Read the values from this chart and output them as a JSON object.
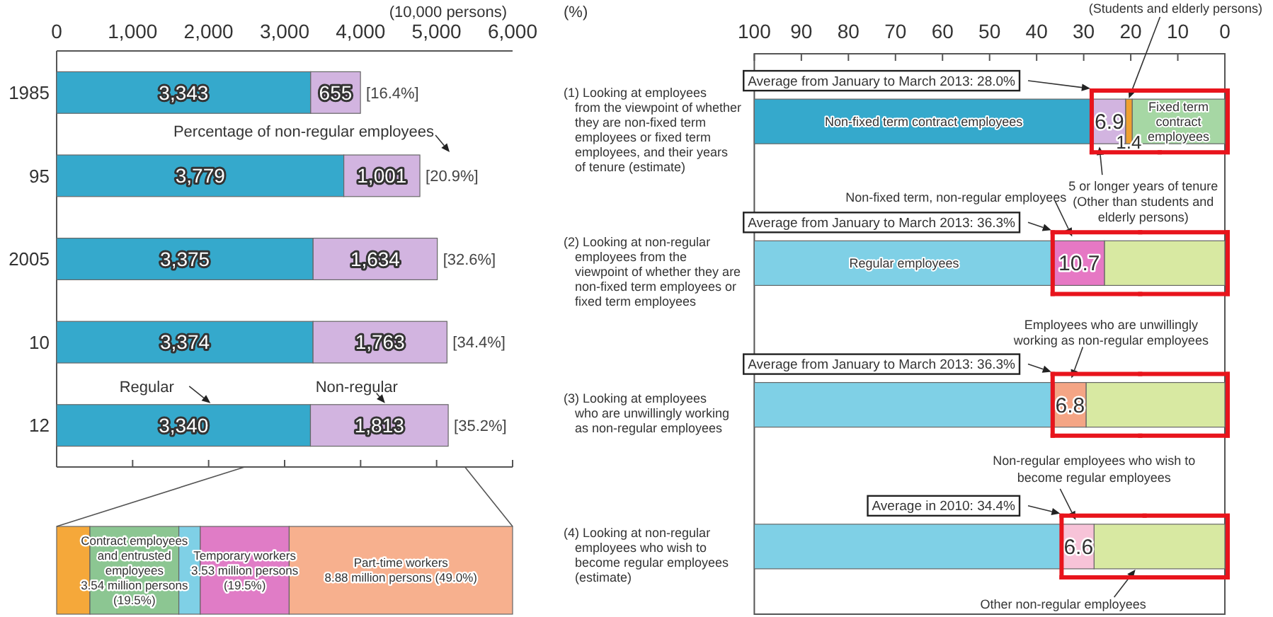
{
  "chart_data": [
    {
      "type": "bar",
      "orientation": "horizontal",
      "stacked": true,
      "xlabel": "(10,000 persons)",
      "categories": [
        "1985",
        "95",
        "2005",
        "10",
        "12"
      ],
      "series": [
        {
          "name": "Regular",
          "color": "#35a9cc",
          "values": [
            3343,
            3779,
            3375,
            3374,
            3340
          ],
          "value_labels": [
            "3,343",
            "3,779",
            "3,375",
            "3,374",
            "3,340"
          ]
        },
        {
          "name": "Non-regular",
          "color": "#d2b4e0",
          "values": [
            655,
            1001,
            1634,
            1763,
            1813
          ],
          "value_labels": [
            "655",
            "1,001",
            "1,634",
            "1,763",
            "1,813"
          ]
        }
      ],
      "xlim": [
        0,
        6000
      ],
      "xticks": [
        0,
        {
          "value": 1000,
          "label": "1,000"
        },
        {
          "value": 2000,
          "label": "2,000"
        },
        {
          "value": 3000,
          "label": "3,000"
        },
        {
          "value": 4000,
          "label": "4,000"
        },
        {
          "value": 5000,
          "label": "5,000"
        },
        {
          "value": 6000,
          "label": "6,000"
        }
      ],
      "annotations": [
        {
          "text": "[16.4%]",
          "x": 3998,
          "y": "1985"
        },
        {
          "text": "[20.9%]",
          "x": 4780,
          "y": "95"
        },
        {
          "text": "[32.6%]",
          "x": 5009,
          "y": "2005"
        },
        {
          "text": "[34.4%]",
          "x": 5137,
          "y": "10"
        },
        {
          "text": "[35.2%]",
          "x": 5153,
          "y": "12"
        },
        "Percentage of non-regular employees"
      ]
    },
    {
      "type": "bar",
      "orientation": "horizontal",
      "stacked": true,
      "categories": [
        null
      ],
      "tick_labels": false,
      "series": [
        {
          "color": "#f5a83a",
          "values": [
            7.3
          ]
        },
        {
          "name": "Contract employees and entrusted employees",
          "color": "#8cc692",
          "values": [
            19.5
          ],
          "value_labels": [
            "3.54 million persons (19.5%)"
          ]
        },
        {
          "color": "#7fd0e6",
          "values": [
            4.7
          ]
        },
        {
          "name": "Temporary workers",
          "color": "#e07cc6",
          "values": [
            19.5
          ],
          "value_labels": [
            "3.53 million persons (19.5%)"
          ]
        },
        {
          "name": "Part-time workers",
          "color": "#f7b08e",
          "values": [
            49.0
          ],
          "value_labels": [
            "8.88 million persons (49.0%)"
          ]
        }
      ]
    },
    {
      "type": "bar",
      "orientation": "horizontal",
      "stacked": true,
      "xlabel": "(%)",
      "categories": [
        "(1) Looking at employees from the viewpoint of whether they are non-fixed term employees or fixed term employees, and their years of tenure (estimate)",
        "(2) Looking at non-regular employees from the viewpoint of whether they are non-fixed term employees or fixed term employees",
        "(3) Looking at employees who are unwillingly working as non-regular employees",
        "(4) Looking at non-regular employees who wish to become regular employees (estimate)"
      ],
      "xlim": [
        100,
        0
      ],
      "xticks": [
        100,
        90,
        80,
        70,
        60,
        50,
        40,
        30,
        20,
        10,
        0
      ],
      "series": [
        {
          "name": "Fixed term contract employees",
          "color": "#a6d7a4",
          "values": [
            19.7,
            null,
            null,
            null
          ]
        },
        {
          "name": "Other non-regular employees",
          "color": "#d8e9a2",
          "values": [
            null,
            25.6,
            29.5,
            27.8
          ]
        },
        {
          "name": "(Students and elderly persons)",
          "color": "#f0a030",
          "values": [
            1.4,
            null,
            null,
            null
          ],
          "value_labels": [
            "1.4",
            null,
            null,
            null
          ]
        },
        {
          "name": "5 or longer years of tenure (Other than students and elderly persons)",
          "color": "#d2b4e0",
          "values": [
            6.9,
            null,
            null,
            null
          ],
          "value_labels": [
            "6.9",
            null,
            null,
            null
          ]
        },
        {
          "name": "Non-fixed term, non-regular employees",
          "color": "#e678c4",
          "values": [
            null,
            10.7,
            null,
            null
          ],
          "value_labels": [
            null,
            "10.7",
            null,
            null
          ]
        },
        {
          "name": "Employees who are unwillingly working as non-regular employees",
          "color": "#f4a585",
          "values": [
            null,
            null,
            6.8,
            null
          ],
          "value_labels": [
            null,
            null,
            "6.8",
            null
          ]
        },
        {
          "name": "Non-regular employees who wish to become regular employees",
          "color": "#f7c3d8",
          "values": [
            null,
            null,
            null,
            6.6
          ],
          "value_labels": [
            null,
            null,
            null,
            "6.6"
          ]
        },
        {
          "name": "Non-fixed term contract employees",
          "color": "#35a9cc",
          "values": [
            72.0,
            null,
            null,
            null
          ]
        },
        {
          "name": "Regular employees",
          "color": "#7fd0e6",
          "values": [
            null,
            63.7,
            63.7,
            65.6
          ]
        }
      ],
      "annotations": [
        "Average from January to March 2013: 28.0%",
        "Average from January to March 2013: 36.3%",
        "Average from January to March 2013: 36.3%",
        "Average in 2010: 34.4%"
      ]
    }
  ]
}
